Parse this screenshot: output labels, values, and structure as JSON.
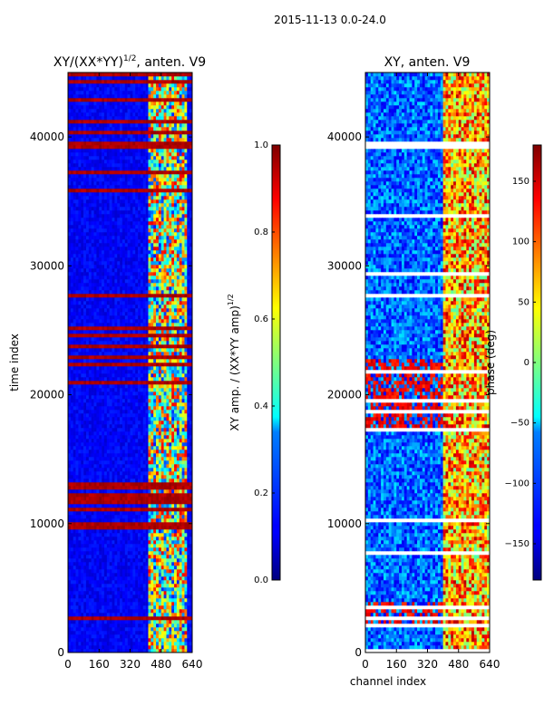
{
  "suptitle": "2015-11-13 0.0-24.0",
  "colors": {
    "map_jet": [
      "#00007f",
      "#0000ff",
      "#007fff",
      "#00ffff",
      "#7fff7f",
      "#ffff00",
      "#ff7f00",
      "#ff0000",
      "#7f0000"
    ],
    "background_blue": "#0000a8",
    "flag_red": "#b40000"
  },
  "chart_data": [
    {
      "type": "heatmap",
      "title": "XY/(XX*YY)",
      "title_sup": "1/2",
      "title_suffix": ", anten. V9",
      "xlabel": "",
      "ylabel": "time index",
      "xlim": [
        0,
        640
      ],
      "ylim": [
        0,
        45000
      ],
      "xticks": [
        0,
        160,
        320,
        480,
        640
      ],
      "yticks": [
        0,
        10000,
        20000,
        30000,
        40000
      ],
      "colorbar": {
        "label": "XY amp. / (XX*YY amp)",
        "label_sup": "1/2",
        "range": [
          0.0,
          1.0
        ],
        "ticks": [
          0.0,
          0.2,
          0.4,
          0.6,
          0.8,
          1.0
        ],
        "tick_labels": [
          "0.0",
          "0.2",
          "0.4",
          "0.6",
          "0.8",
          "1.0"
        ]
      },
      "features": {
        "active_band_channels": [
          410,
          625
        ],
        "flagged_time_ranges": [
          [
            39000,
            45000
          ],
          [
            22000,
            27000
          ],
          [
            9000,
            13500
          ],
          [
            2500,
            3500
          ]
        ]
      }
    },
    {
      "type": "heatmap",
      "title": "XY, anten. V9",
      "xlabel": "channel index",
      "ylabel": "",
      "xlim": [
        0,
        640
      ],
      "ylim": [
        0,
        45000
      ],
      "xticks": [
        0,
        160,
        320,
        480,
        640
      ],
      "yticks": [
        0,
        10000,
        20000,
        30000,
        40000
      ],
      "colorbar": {
        "label": "phase (deg)",
        "range": [
          -180,
          180
        ],
        "ticks": [
          -150,
          -100,
          -50,
          0,
          50,
          100,
          150
        ],
        "tick_labels": [
          "−150",
          "−100",
          "−50",
          "0",
          "50",
          "100",
          "150"
        ]
      },
      "features": {
        "active_band_channels": [
          390,
          640
        ],
        "hot_time_ranges": [
          [
            17000,
            23000
          ],
          [
            2000,
            4000
          ]
        ]
      }
    }
  ]
}
